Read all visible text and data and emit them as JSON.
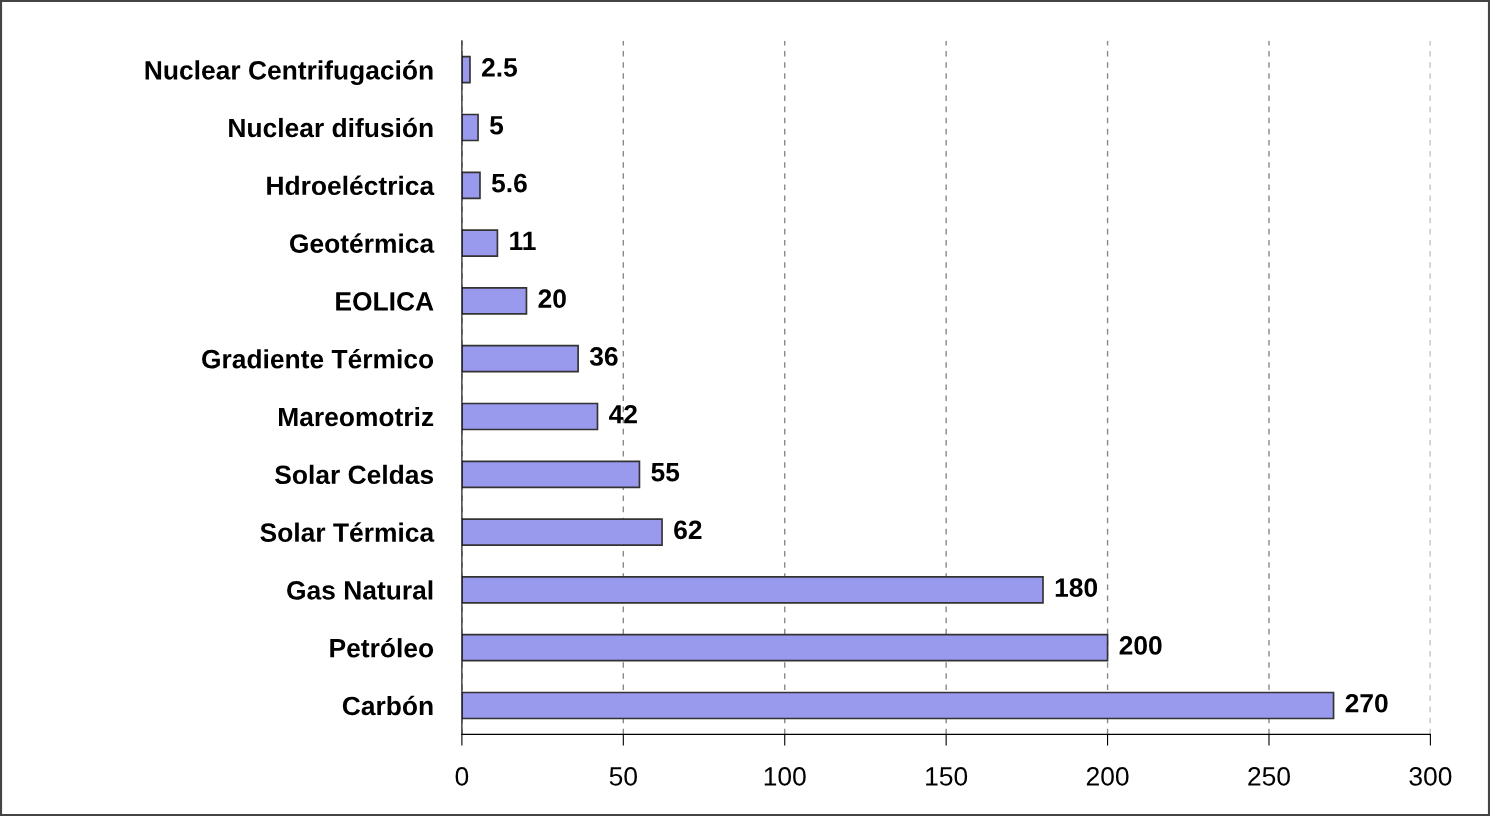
{
  "chart_data": {
    "type": "bar",
    "orientation": "horizontal",
    "categories": [
      "Nuclear Centrifugación",
      "Nuclear difusión",
      "Hdroeléctrica",
      "Geotérmica",
      "EOLICA",
      "Gradiente Térmico",
      "Mareomotriz",
      "Solar Celdas",
      "Solar Térmica",
      "Gas Natural",
      "Petróleo",
      "Carbón"
    ],
    "values": [
      2.5,
      5,
      5.6,
      11,
      20,
      36,
      42,
      55,
      62,
      180,
      200,
      270
    ],
    "color": "#9999ee",
    "xlim": [
      0,
      300
    ],
    "xticks": [
      0,
      50,
      100,
      150,
      200,
      250,
      300
    ],
    "grid": "x",
    "data_labels": true
  }
}
